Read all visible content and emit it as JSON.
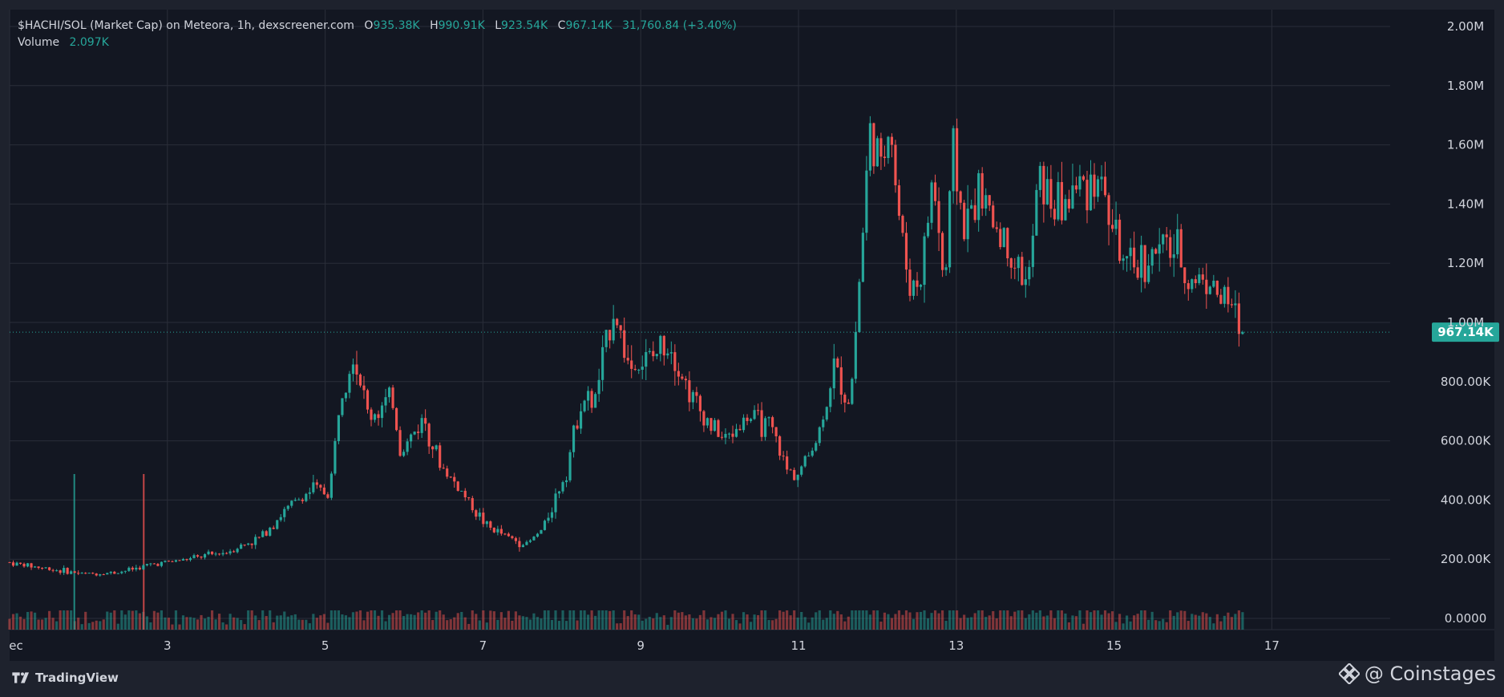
{
  "legend": {
    "title": "$HACHI/SOL (Market Cap) on Meteora, 1h, dexscreener.com",
    "open_label": "O",
    "open": "935.38K",
    "high_label": "H",
    "high": "990.91K",
    "low_label": "L",
    "low": "923.54K",
    "close_label": "C",
    "close": "967.14K",
    "change": "31,760.84 (+3.40%)",
    "volume_label": "Volume",
    "volume": "2.097K"
  },
  "footer": {
    "brand": "TradingView",
    "watermark": "@ Coinstages"
  },
  "colors": {
    "up": "#26a69a",
    "down": "#ef5350",
    "grid": "#2a2e39",
    "background": "#131722",
    "axis_text": "#d1d4dc"
  },
  "chart_data": {
    "type": "candlestick",
    "title": "$HACHI/SOL (Market Cap) on Meteora, 1h, dexscreener.com",
    "ylabel": "",
    "xlabel": "",
    "y_ticks": [
      "0.0000",
      "200.00K",
      "400.00K",
      "600.00K",
      "800.00K",
      "1.00M",
      "1.20M",
      "1.40M",
      "1.60M",
      "1.80M",
      "2.00M"
    ],
    "ylim": [
      0,
      2000000
    ],
    "x_ticks": [
      {
        "label": "ec",
        "day": 1
      },
      {
        "label": "3",
        "day": 3
      },
      {
        "label": "5",
        "day": 5
      },
      {
        "label": "7",
        "day": 7
      },
      {
        "label": "9",
        "day": 9
      },
      {
        "label": "11",
        "day": 11
      },
      {
        "label": "13",
        "day": 13
      },
      {
        "label": "15",
        "day": 15
      },
      {
        "label": "17",
        "day": 17
      }
    ],
    "xlim": [
      1,
      18.5
    ],
    "last_price": 967140,
    "last_price_label": "967.14K",
    "grid": true,
    "series_anchors": [
      [
        1.0,
        190000
      ],
      [
        1.6,
        165000
      ],
      [
        2.0,
        150000
      ],
      [
        2.4,
        155000
      ],
      [
        2.9,
        185000
      ],
      [
        3.3,
        200000
      ],
      [
        3.8,
        225000
      ],
      [
        4.2,
        270000
      ],
      [
        4.6,
        380000
      ],
      [
        4.9,
        440000
      ],
      [
        5.1,
        420000
      ],
      [
        5.25,
        780000
      ],
      [
        5.4,
        900000
      ],
      [
        5.6,
        680000
      ],
      [
        5.9,
        740000
      ],
      [
        6.0,
        560000
      ],
      [
        6.3,
        680000
      ],
      [
        6.5,
        520000
      ],
      [
        6.8,
        420000
      ],
      [
        7.1,
        310000
      ],
      [
        7.4,
        270000
      ],
      [
        7.6,
        250000
      ],
      [
        7.8,
        300000
      ],
      [
        8.1,
        500000
      ],
      [
        8.3,
        750000
      ],
      [
        8.45,
        720000
      ],
      [
        8.7,
        1050000
      ],
      [
        8.9,
        850000
      ],
      [
        9.2,
        880000
      ],
      [
        9.4,
        950000
      ],
      [
        9.6,
        800000
      ],
      [
        9.8,
        700000
      ],
      [
        10.1,
        600000
      ],
      [
        10.4,
        680000
      ],
      [
        10.7,
        640000
      ],
      [
        10.9,
        500000
      ],
      [
        11.05,
        490000
      ],
      [
        11.3,
        620000
      ],
      [
        11.5,
        850000
      ],
      [
        11.7,
        720000
      ],
      [
        11.82,
        1150000
      ],
      [
        11.95,
        1650000
      ],
      [
        12.1,
        1500000
      ],
      [
        12.2,
        1720000
      ],
      [
        12.3,
        1400000
      ],
      [
        12.45,
        1120000
      ],
      [
        12.6,
        1150000
      ],
      [
        12.75,
        1500000
      ],
      [
        12.9,
        1100000
      ],
      [
        13.0,
        1600000
      ],
      [
        13.15,
        1300000
      ],
      [
        13.3,
        1450000
      ],
      [
        13.5,
        1350000
      ],
      [
        13.8,
        1200000
      ],
      [
        13.95,
        1120000
      ],
      [
        14.1,
        1500000
      ],
      [
        14.3,
        1380000
      ],
      [
        14.6,
        1460000
      ],
      [
        14.85,
        1500000
      ],
      [
        15.0,
        1350000
      ],
      [
        15.2,
        1170000
      ],
      [
        15.4,
        1200000
      ],
      [
        15.6,
        1240000
      ],
      [
        15.8,
        1260000
      ],
      [
        16.0,
        1140000
      ],
      [
        16.2,
        1160000
      ],
      [
        16.4,
        1080000
      ],
      [
        16.55,
        1050000
      ],
      [
        16.65,
        967140
      ]
    ],
    "wick_spikes": [
      {
        "day": 1.82,
        "volume": 490
      },
      {
        "day": 2.7,
        "volume": 490
      }
    ]
  }
}
